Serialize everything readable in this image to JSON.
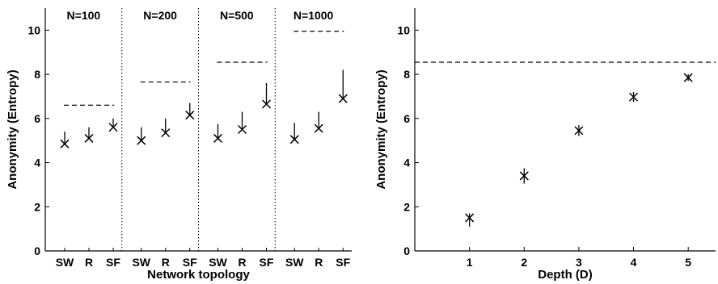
{
  "chart_data": [
    {
      "type": "scatter",
      "xlabel": "Network topology",
      "ylabel": "Anonymity (Entropy)",
      "ylim": [
        0,
        11
      ],
      "yticks": [
        "0",
        "2",
        "4",
        "6",
        "8",
        "10"
      ],
      "groups": [
        {
          "label": "N=100",
          "bound": 6.6,
          "points": [
            {
              "category": "SW",
              "y": 4.85,
              "err_low": 4.9,
              "err_high": 5.4
            },
            {
              "category": "R",
              "y": 5.1,
              "err_low": 5.1,
              "err_high": 5.6
            },
            {
              "category": "SF",
              "y": 5.6,
              "err_low": 5.6,
              "err_high": 6.0
            }
          ]
        },
        {
          "label": "N=200",
          "bound": 7.65,
          "points": [
            {
              "category": "SW",
              "y": 5.0,
              "err_low": 5.0,
              "err_high": 5.6
            },
            {
              "category": "R",
              "y": 5.35,
              "err_low": 5.35,
              "err_high": 6.0
            },
            {
              "category": "SF",
              "y": 6.15,
              "err_low": 6.15,
              "err_high": 6.7
            }
          ]
        },
        {
          "label": "N=500",
          "bound": 8.55,
          "points": [
            {
              "category": "SW",
              "y": 5.1,
              "err_low": 5.1,
              "err_high": 5.75
            },
            {
              "category": "R",
              "y": 5.5,
              "err_low": 5.5,
              "err_high": 6.3
            },
            {
              "category": "SF",
              "y": 6.65,
              "err_low": 6.65,
              "err_high": 7.6
            }
          ]
        },
        {
          "label": "N=1000",
          "bound": 9.95,
          "points": [
            {
              "category": "SW",
              "y": 5.05,
              "err_low": 5.05,
              "err_high": 5.8
            },
            {
              "category": "R",
              "y": 5.55,
              "err_low": 5.55,
              "err_high": 6.3
            },
            {
              "category": "SF",
              "y": 6.9,
              "err_low": 6.9,
              "err_high": 8.2
            }
          ]
        }
      ]
    },
    {
      "type": "scatter",
      "xlabel": "Depth (D)",
      "ylabel": "Anonymity (Entropy)",
      "ylim": [
        0,
        11
      ],
      "xlim": [
        0,
        5.5
      ],
      "yticks": [
        "0",
        "2",
        "4",
        "6",
        "8",
        "10"
      ],
      "xticks": [
        "1",
        "2",
        "3",
        "4",
        "5"
      ],
      "bound": 8.55,
      "points": [
        {
          "x": 1,
          "y": 1.5,
          "err_low": 1.1,
          "err_high": 1.7
        },
        {
          "x": 2,
          "y": 3.4,
          "err_low": 3.05,
          "err_high": 3.75
        },
        {
          "x": 3,
          "y": 5.45,
          "err_low": 5.2,
          "err_high": 5.7
        },
        {
          "x": 4,
          "y": 6.97,
          "err_low": 6.75,
          "err_high": 7.2
        },
        {
          "x": 5,
          "y": 7.85,
          "err_low": 7.7,
          "err_high": 8.0
        }
      ]
    }
  ]
}
